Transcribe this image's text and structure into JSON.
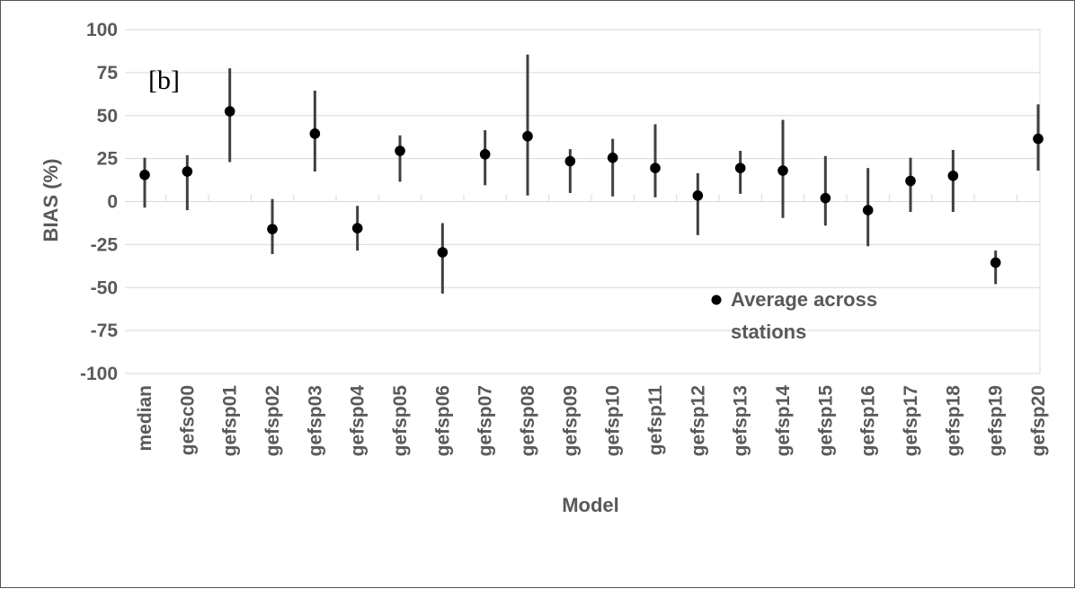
{
  "chart_data": {
    "type": "scatter",
    "panel_label": "[b]",
    "xlabel": "Model",
    "ylabel": "BIAS (%)",
    "ylim": [
      -100,
      100
    ],
    "yticks": [
      100,
      75,
      50,
      25,
      0,
      -25,
      -50,
      -75,
      -100
    ],
    "grid": "horizontal",
    "legend_position": "bottom-right",
    "colors": {
      "marker": "#000000",
      "errorbar": "#404040",
      "grid": "#d9d9d9",
      "text": "#595959"
    },
    "categories": [
      "median",
      "gefsc00",
      "gefsp01",
      "gefsp02",
      "gefsp03",
      "gefsp04",
      "gefsp05",
      "gefsp06",
      "gefsp07",
      "gefsp08",
      "gefsp09",
      "gefsp10",
      "gefsp11",
      "gefsp12",
      "gefsp13",
      "gefsp14",
      "gefsp15",
      "gefsp16",
      "gefsp17",
      "gefsp18",
      "gefsp19",
      "gefsp20"
    ],
    "series": [
      {
        "name": "Average across stations",
        "values": [
          15.5,
          17.5,
          52.5,
          -16,
          39.5,
          -15.5,
          29.5,
          -29.5,
          27.5,
          38,
          23.5,
          25.5,
          19.5,
          3.5,
          19.5,
          18,
          2,
          -5,
          12,
          15,
          -35.5,
          36.5
        ],
        "err_low": [
          -3.5,
          -5,
          23,
          -30.5,
          17.5,
          -28.5,
          11.5,
          -53.5,
          9.5,
          3.5,
          5,
          3,
          2.5,
          -19.5,
          4.5,
          -9.5,
          -14,
          -26,
          -6,
          -6,
          -48,
          18
        ],
        "err_high": [
          25.5,
          27,
          77.5,
          1.5,
          64.5,
          -2.5,
          38.5,
          -12.5,
          41.5,
          85.5,
          30.5,
          36.5,
          45,
          16.5,
          29.5,
          47.5,
          26.5,
          19.5,
          25.5,
          30,
          -28.5,
          56.5
        ]
      }
    ]
  }
}
